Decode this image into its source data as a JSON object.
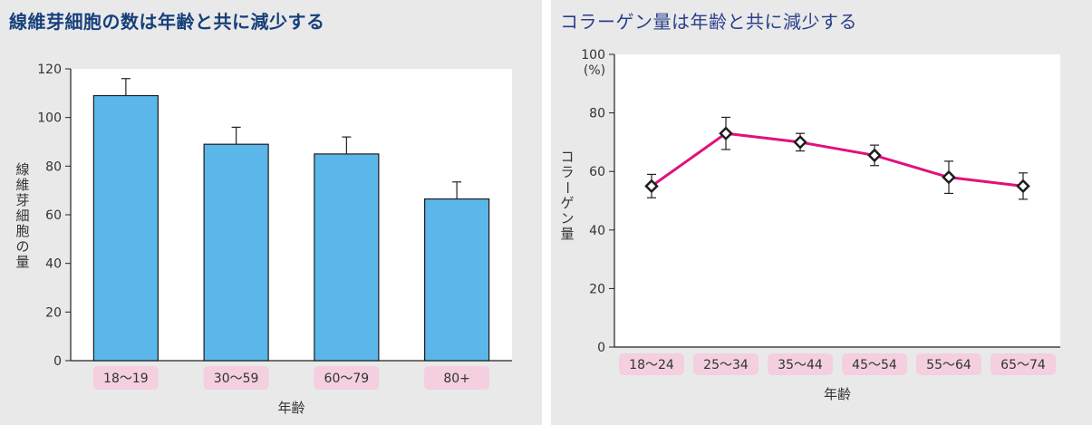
{
  "chart_data": [
    {
      "type": "bar",
      "title": "線維芽細胞の数は年齢と共に減少する",
      "xlabel": "年齢",
      "ylabel": "線維芽細胞の量",
      "categories": [
        "18〜19",
        "30〜59",
        "60〜79",
        "80+"
      ],
      "values": [
        109,
        89,
        85,
        66.5
      ],
      "error": [
        7,
        7,
        7,
        7
      ],
      "ylim": [
        0,
        120
      ],
      "yticks": [
        "0",
        "20",
        "40",
        "60",
        "80",
        "100",
        "120"
      ],
      "grid": false,
      "colors": {
        "bar": "#5bb6e9",
        "bar_edge": "#1d1d1d",
        "category_bg": "#f3cfe0",
        "title": "#17407a"
      }
    },
    {
      "type": "line",
      "title": "コラーゲン量は年齢と共に減少する",
      "xlabel": "年齢",
      "ylabel": "コラーゲン量",
      "y_unit": "(%)",
      "categories": [
        "18〜24",
        "25〜34",
        "35〜44",
        "45〜54",
        "55〜64",
        "65〜74"
      ],
      "values": [
        55,
        73,
        70,
        65.5,
        58,
        55
      ],
      "error": [
        4,
        5.5,
        3,
        3.5,
        5.5,
        4.5
      ],
      "ylim": [
        0,
        100
      ],
      "yticks": [
        "0",
        "20",
        "40",
        "60",
        "80",
        "100"
      ],
      "grid": false,
      "colors": {
        "line": "#e0117d",
        "marker": "#1d1d1d",
        "category_bg": "#f3cfe0",
        "title": "#2a3f8a"
      }
    }
  ]
}
